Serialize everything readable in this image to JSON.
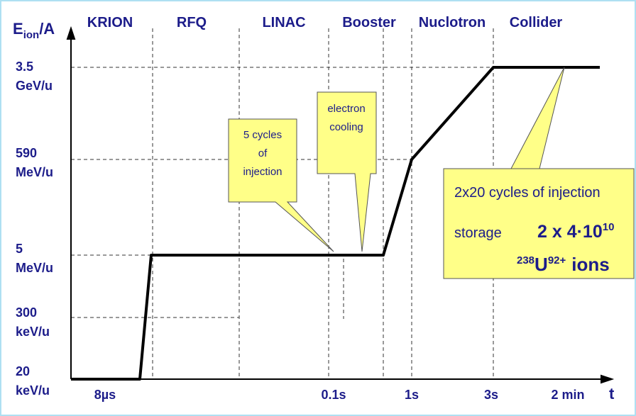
{
  "axis": {
    "y_label": "E",
    "y_label_sub": "ion",
    "y_label_suffix": "/A",
    "x_label": "t"
  },
  "stages": [
    "KRION",
    "RFQ",
    "LINAC",
    "Booster",
    "Nuclotron",
    "Collider"
  ],
  "y_labels": [
    {
      "value": "3.5",
      "unit": "GeV/u"
    },
    {
      "value": "590",
      "unit": "MeV/u"
    },
    {
      "value": "5",
      "unit": "MeV/u"
    },
    {
      "value": "300",
      "unit": "keV/u"
    },
    {
      "value": "20",
      "unit": "keV/u"
    }
  ],
  "x_labels": [
    "8µs",
    "0.1s",
    "1s",
    "3s",
    "2 min"
  ],
  "callouts": [
    {
      "lines": [
        "5 cycles",
        "of",
        "injection"
      ]
    },
    {
      "lines": [
        "electron",
        "cooling"
      ]
    }
  ],
  "storage_box": {
    "line1": "2x20 cycles of injection",
    "storage": "storage",
    "expr_base": "2 x 4·10",
    "expr_exp": "10",
    "iso_mass": "238",
    "iso_sym": "U",
    "iso_charge": "92+",
    "ions": "ions"
  }
}
